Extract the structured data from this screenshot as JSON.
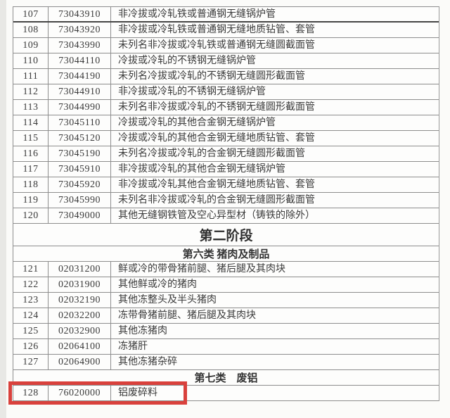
{
  "highlight": {
    "color": "#d9413c",
    "target_row": "128"
  },
  "table": {
    "rows": [
      {
        "type": "item",
        "no": "107",
        "code": "73043910",
        "desc": "非冷拔或冷轧铁或普通钢无缝锅炉管"
      },
      {
        "type": "item",
        "no": "108",
        "code": "73043920",
        "desc": "非冷拔或冷轧铁或普通钢无缝地质钻管、套管"
      },
      {
        "type": "item",
        "no": "109",
        "code": "73043990",
        "desc": "未列名非冷拔或冷轧铁或普通钢无缝圆截面管"
      },
      {
        "type": "item",
        "no": "110",
        "code": "73044110",
        "desc": "冷拔或冷轧的不锈钢无缝锅炉管"
      },
      {
        "type": "item",
        "no": "111",
        "code": "73044190",
        "desc": "未列名冷拔或冷轧的不锈钢无缝圆形截面管"
      },
      {
        "type": "item",
        "no": "112",
        "code": "73044910",
        "desc": "非冷拔或冷轧的不锈钢无缝锅炉管"
      },
      {
        "type": "item",
        "no": "113",
        "code": "73044990",
        "desc": "未列名非冷拔或冷轧的不锈钢无缝圆形截面管"
      },
      {
        "type": "item",
        "no": "114",
        "code": "73045110",
        "desc": "冷拔或冷轧的其他合金钢无缝锅炉管"
      },
      {
        "type": "item",
        "no": "115",
        "code": "73045120",
        "desc": "冷拔或冷轧的其他合金钢无缝地质钻管、套管"
      },
      {
        "type": "item",
        "no": "116",
        "code": "73045190",
        "desc": "未列名冷拔或冷轧的合金钢无缝圆形截面管"
      },
      {
        "type": "item",
        "no": "117",
        "code": "73045910",
        "desc": "非冷拔或冷轧的其他合金钢无缝锅炉管"
      },
      {
        "type": "item",
        "no": "118",
        "code": "73045920",
        "desc": "非冷拔或冷轧其他合金钢无缝地质钻管、套管"
      },
      {
        "type": "item",
        "no": "119",
        "code": "73045990",
        "desc": "未列名非冷拔或冷轧的合金钢无缝圆形截面管"
      },
      {
        "type": "item",
        "no": "120",
        "code": "73049000",
        "desc": "其他无缝钢铁管及空心异型材（铸铁的除外）"
      },
      {
        "type": "stage",
        "text": "第二阶段"
      },
      {
        "type": "category",
        "text": "第六类 猪肉及制品"
      },
      {
        "type": "item",
        "no": "121",
        "code": "02031200",
        "desc": "鲜或冷的带骨猪前腿、猪后腿及其肉块"
      },
      {
        "type": "item",
        "no": "122",
        "code": "02031900",
        "desc": "其他鲜或冷的猪肉"
      },
      {
        "type": "item",
        "no": "123",
        "code": "02032190",
        "desc": "其他冻整头及半头猪肉"
      },
      {
        "type": "item",
        "no": "124",
        "code": "02032200",
        "desc": "冻带骨猪前腿、猪后腿及其肉块"
      },
      {
        "type": "item",
        "no": "125",
        "code": "02032900",
        "desc": "其他冻猪肉"
      },
      {
        "type": "item",
        "no": "126",
        "code": "02064100",
        "desc": "冻猪肝"
      },
      {
        "type": "item",
        "no": "127",
        "code": "02064900",
        "desc": "其他冻猪杂碎"
      },
      {
        "type": "category",
        "text": "第七类　废铝"
      },
      {
        "type": "item",
        "no": "128",
        "code": "76020000",
        "desc": "铝废碎料",
        "highlighted": true
      }
    ]
  }
}
